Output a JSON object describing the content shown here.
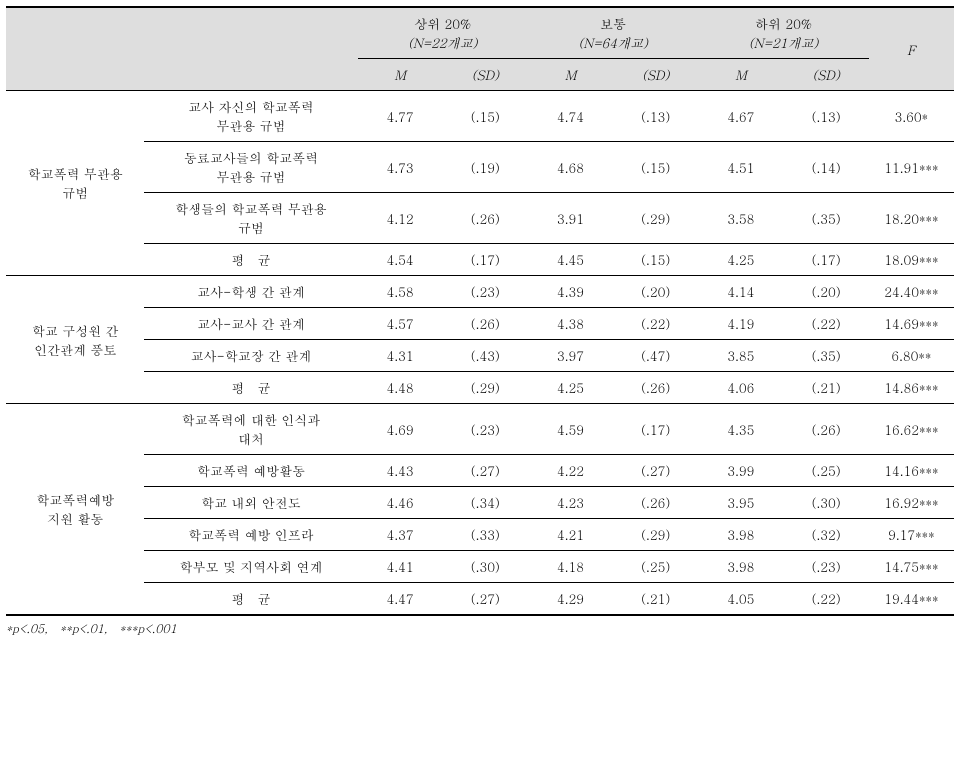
{
  "header": {
    "groups": [
      {
        "title": "상위 20%",
        "n": "(N=22개교)"
      },
      {
        "title": "보통",
        "n": "(N=64개교)"
      },
      {
        "title": "하위 20%",
        "n": "(N=21개교)"
      }
    ],
    "stat_cols": {
      "m": "M",
      "sd": "(SD)"
    },
    "f_label": "F"
  },
  "sections": [
    {
      "title": "학교폭력 무관용\n규범",
      "rows": [
        {
          "label": "교사 자신의  학교폭력\n무관용 규범",
          "m1": "4.77",
          "sd1": "(.15)",
          "m2": "4.74",
          "sd2": "(.13)",
          "m3": "4.67",
          "sd3": "(.13)",
          "f": "3.60*"
        },
        {
          "label": "동료교사들의 학교폭력\n무관용 규범",
          "m1": "4.73",
          "sd1": "(.19)",
          "m2": "4.68",
          "sd2": "(.15)",
          "m3": "4.51",
          "sd3": "(.14)",
          "f": "11.91***"
        },
        {
          "label": "학생들의 학교폭력 무관용\n규범",
          "m1": "4.12",
          "sd1": "(.26)",
          "m2": "3.91",
          "sd2": "(.29)",
          "m3": "3.58",
          "sd3": "(.35)",
          "f": "18.20***"
        },
        {
          "label": "평 균",
          "m1": "4.54",
          "sd1": "(.17)",
          "m2": "4.45",
          "sd2": "(.15)",
          "m3": "4.25",
          "sd3": "(.17)",
          "f": "18.09***",
          "is_mean": true
        }
      ]
    },
    {
      "title": "학교 구성원 간\n인간관계 풍토",
      "rows": [
        {
          "label": "교사-학생 간 관계",
          "m1": "4.58",
          "sd1": "(.23)",
          "m2": "4.39",
          "sd2": "(.20)",
          "m3": "4.14",
          "sd3": "(.20)",
          "f": "24.40***"
        },
        {
          "label": "교사-교사 간 관계",
          "m1": "4.57",
          "sd1": "(.26)",
          "m2": "4.38",
          "sd2": "(.22)",
          "m3": "4.19",
          "sd3": "(.22)",
          "f": "14.69***"
        },
        {
          "label": "교사-학교장 간 관계",
          "m1": "4.31",
          "sd1": "(.43)",
          "m2": "3.97",
          "sd2": "(.47)",
          "m3": "3.85",
          "sd3": "(.35)",
          "f": "6.80**"
        },
        {
          "label": "평 균",
          "m1": "4.48",
          "sd1": "(.29)",
          "m2": "4.25",
          "sd2": "(.26)",
          "m3": "4.06",
          "sd3": "(.21)",
          "f": "14.86***",
          "is_mean": true
        }
      ]
    },
    {
      "title": "학교폭력예방\n지원 활동",
      "rows": [
        {
          "label": "학교폭력에 대한 인식과\n대처",
          "m1": "4.69",
          "sd1": "(.23)",
          "m2": "4.59",
          "sd2": "(.17)",
          "m3": "4.35",
          "sd3": "(.26)",
          "f": "16.62***"
        },
        {
          "label": "학교폭력 예방활동",
          "m1": "4.43",
          "sd1": "(.27)",
          "m2": "4.22",
          "sd2": "(.27)",
          "m3": "3.99",
          "sd3": "(.25)",
          "f": "14.16***"
        },
        {
          "label": "학교 내외 안전도",
          "m1": "4.46",
          "sd1": "(.34)",
          "m2": "4.23",
          "sd2": "(.26)",
          "m3": "3.95",
          "sd3": "(.30)",
          "f": "16.92***"
        },
        {
          "label": "학교폭력 예방 인프라",
          "m1": "4.37",
          "sd1": "(.33)",
          "m2": "4.21",
          "sd2": "(.29)",
          "m3": "3.98",
          "sd3": "(.32)",
          "f": "9.17***"
        },
        {
          "label": "학부모 및 지역사회 연계",
          "m1": "4.41",
          "sd1": "(.30)",
          "m2": "4.18",
          "sd2": "(.25)",
          "m3": "3.98",
          "sd3": "(.23)",
          "f": "14.75***"
        },
        {
          "label": "평 균",
          "m1": "4.47",
          "sd1": "(.27)",
          "m2": "4.29",
          "sd2": "(.21)",
          "m3": "4.05",
          "sd3": "(.22)",
          "f": "19.44***",
          "is_mean": true
        }
      ]
    }
  ],
  "footnote": "*p<.05, **p<.01, ***p<.001",
  "colors": {
    "header_bg": "#dedede",
    "border": "#000000",
    "text": "#000000",
    "background": "#ffffff"
  },
  "typography": {
    "base_fontsize": 13,
    "footnote_fontsize": 12,
    "font_family": "Malgun Gothic, Batang, serif"
  }
}
